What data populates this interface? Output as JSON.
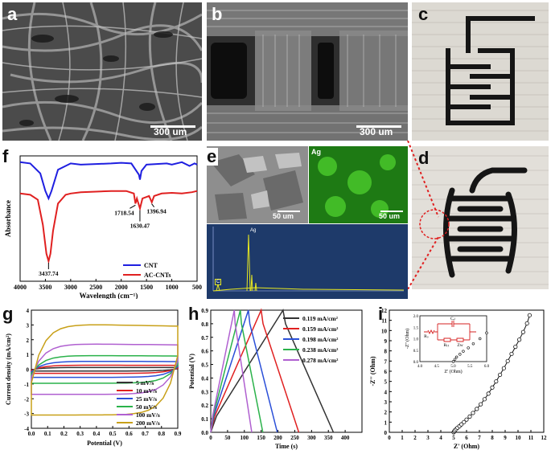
{
  "panels": {
    "a": {
      "label": "a",
      "scalebar": "300 um"
    },
    "b": {
      "label": "b",
      "scalebar": "300 um"
    },
    "c": {
      "label": "c"
    },
    "d": {
      "label": "d"
    },
    "e": {
      "label": "e",
      "map_label": "Ag",
      "scalebar_left": "50 um",
      "scalebar_right": "50 um",
      "eds_peak": "Ag",
      "eds_c": "C"
    },
    "f": {
      "label": "f"
    },
    "g": {
      "label": "g"
    },
    "h": {
      "label": "h"
    },
    "i": {
      "label": "i"
    }
  },
  "chart_data": [
    {
      "id": "f",
      "type": "line",
      "xlabel": "Wavelength (cm⁻¹)",
      "ylabel": "Absorbance",
      "xticks": [
        4000,
        3500,
        3000,
        2500,
        2000,
        1500,
        1000,
        500
      ],
      "xlim": [
        4000,
        500
      ],
      "series": [
        {
          "name": "CNT",
          "color": "#1f1fe0",
          "x": [
            4000,
            3800,
            3600,
            3500,
            3437,
            3380,
            3250,
            3000,
            2800,
            2500,
            2200,
            2000,
            1800,
            1650,
            1630,
            1600,
            1500,
            1300,
            1100,
            1000,
            800,
            650,
            550,
            500
          ],
          "y": [
            0.95,
            0.94,
            0.86,
            0.72,
            0.66,
            0.72,
            0.89,
            0.94,
            0.93,
            0.935,
            0.94,
            0.945,
            0.94,
            0.85,
            0.81,
            0.88,
            0.93,
            0.935,
            0.94,
            0.93,
            0.95,
            0.92,
            0.94,
            0.93
          ]
        },
        {
          "name": "AC-CNTs",
          "color": "#e02020",
          "x": [
            4000,
            3800,
            3650,
            3550,
            3480,
            3437,
            3400,
            3350,
            3250,
            3100,
            3000,
            2800,
            2500,
            2200,
            1900,
            1750,
            1718,
            1690,
            1630,
            1580,
            1450,
            1396,
            1350,
            1200,
            1000,
            800,
            600,
            500
          ],
          "y": [
            0.7,
            0.69,
            0.65,
            0.45,
            0.22,
            0.16,
            0.22,
            0.4,
            0.62,
            0.69,
            0.7,
            0.71,
            0.715,
            0.72,
            0.72,
            0.7,
            0.62,
            0.66,
            0.58,
            0.66,
            0.68,
            0.63,
            0.68,
            0.7,
            0.705,
            0.7,
            0.71,
            0.72
          ]
        }
      ],
      "annotations": [
        "3437.74",
        "1718.54",
        "1630.47",
        "1396.94"
      ],
      "legend": "bottom-right"
    },
    {
      "id": "g",
      "type": "line",
      "xlabel": "Potential (V)",
      "ylabel": "Current density (mA/cm²)",
      "xlim": [
        0.0,
        0.9
      ],
      "ylim": [
        -4,
        4
      ],
      "xticks": [
        "0.0",
        "0.1",
        "0.2",
        "0.3",
        "0.4",
        "0.5",
        "0.6",
        "0.7",
        "0.8",
        "0.9"
      ],
      "yticks": [
        -4,
        -3,
        -2,
        -1,
        0,
        1,
        2,
        3,
        4
      ],
      "series": [
        {
          "name": "5 mV/s",
          "color": "#333333",
          "upper": 0.12,
          "lower": -0.12
        },
        {
          "name": "10 mV/s",
          "color": "#e02020",
          "upper": 0.28,
          "lower": -0.28
        },
        {
          "name": "25 mV/s",
          "color": "#2a4fd8",
          "upper": 0.55,
          "lower": -0.55
        },
        {
          "name": "50 mV/s",
          "color": "#2ab24a",
          "upper": 0.95,
          "lower": -0.95
        },
        {
          "name": "100 mV/s",
          "color": "#b060d0",
          "upper": 1.75,
          "lower": -1.7
        },
        {
          "name": "200 mV/s",
          "color": "#c8a018",
          "upper": 3.1,
          "lower": -3.1
        }
      ],
      "legend": "bottom-right"
    },
    {
      "id": "h",
      "type": "line",
      "xlabel": "Time (s)",
      "ylabel": "Potential (V)",
      "xlim": [
        0,
        450
      ],
      "ylim": [
        0.0,
        0.9
      ],
      "xticks": [
        0,
        50,
        100,
        150,
        200,
        250,
        300,
        350,
        400
      ],
      "yticks": [
        "0.0",
        "0.1",
        "0.2",
        "0.3",
        "0.4",
        "0.5",
        "0.6",
        "0.7",
        "0.8",
        "0.9"
      ],
      "series": [
        {
          "name": "0.119 mA/cm²",
          "color": "#333333",
          "peak_t": 215,
          "end_t": 365
        },
        {
          "name": "0.159 mA/cm²",
          "color": "#e02020",
          "peak_t": 150,
          "end_t": 262
        },
        {
          "name": "0.198 mA/cm²",
          "color": "#2a4fd8",
          "peak_t": 112,
          "end_t": 198
        },
        {
          "name": "0.238 mA/cm²",
          "color": "#2ab24a",
          "peak_t": 88,
          "end_t": 155
        },
        {
          "name": "0.278 mA/cm²",
          "color": "#b060d0",
          "peak_t": 70,
          "end_t": 122
        }
      ],
      "legend": "top-right"
    },
    {
      "id": "i",
      "type": "scatter",
      "xlabel": "Z' (Ohm)",
      "ylabel": "-Z'' (Ohm)",
      "xlim": [
        0,
        12
      ],
      "ylim": [
        0,
        12
      ],
      "xticks": [
        0,
        1,
        2,
        3,
        4,
        5,
        6,
        7,
        8,
        9,
        10,
        11,
        12
      ],
      "yticks": [
        0,
        1,
        2,
        3,
        4,
        5,
        6,
        7,
        8,
        9,
        10,
        11,
        12
      ],
      "series": [
        {
          "name": "",
          "color": "#111111",
          "x": [
            5.0,
            5.05,
            5.1,
            5.2,
            5.3,
            5.45,
            5.6,
            5.8,
            6.0,
            6.25,
            6.5,
            6.8,
            7.1,
            7.4,
            7.7,
            8.0,
            8.3,
            8.6,
            8.9,
            9.2,
            9.5,
            9.8,
            10.1,
            10.4,
            10.7,
            10.9
          ],
          "y": [
            0.0,
            0.1,
            0.2,
            0.32,
            0.45,
            0.6,
            0.78,
            1.0,
            1.25,
            1.55,
            1.9,
            2.3,
            2.75,
            3.25,
            3.8,
            4.4,
            5.0,
            5.65,
            6.3,
            7.0,
            7.7,
            8.4,
            9.1,
            9.85,
            10.7,
            11.5
          ]
        }
      ],
      "inset": {
        "xlabel": "Z' (Ohm)",
        "ylabel": "-Z'' (Ohm)",
        "xticks": [
          "4.0",
          "4.5",
          "5.0",
          "5.5",
          "6.0"
        ],
        "yticks": [
          "0.0",
          "0.5",
          "1.0",
          "1.5",
          "2.0"
        ],
        "circuit_labels": {
          "cdl": "Cₑₗ",
          "rs": "Rₛ",
          "rct": "Rₜₜ",
          "zw": "Zᴡ"
        }
      }
    }
  ]
}
